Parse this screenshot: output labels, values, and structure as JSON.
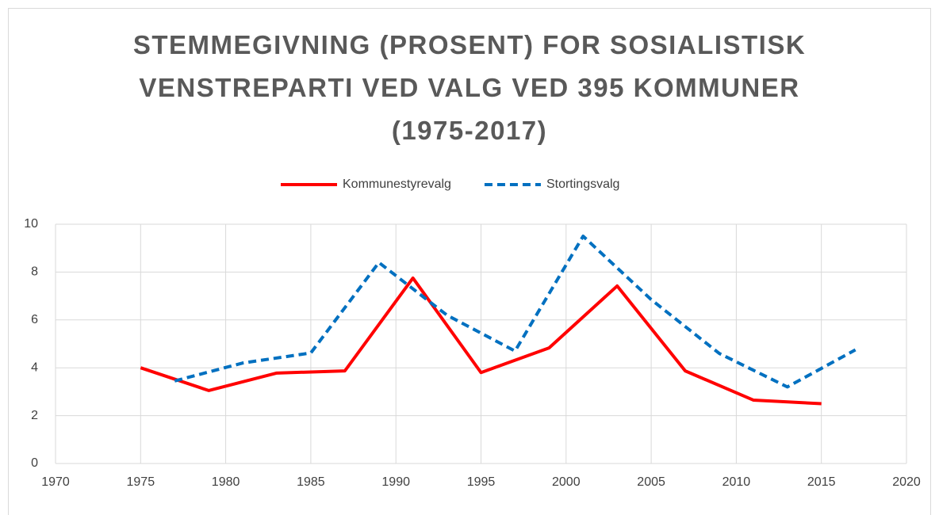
{
  "chart_data": {
    "type": "line",
    "title": "STEMMEGIVNING (PROSENT) FOR SOSIALISTISK VENSTREPARTI VED VALG VED 395 KOMMUNER (1975-2017)",
    "series": [
      {
        "name": "Kommunestyrevalg",
        "color": "#ff0000",
        "dash": false,
        "x": [
          1975,
          1979,
          1983,
          1987,
          1991,
          1995,
          1999,
          2003,
          2007,
          2011,
          2015
        ],
        "values": [
          4.0,
          3.05,
          3.78,
          3.87,
          7.75,
          3.8,
          4.83,
          7.42,
          3.87,
          2.65,
          2.5
        ]
      },
      {
        "name": "Stortingsvalg",
        "color": "#0070c0",
        "dash": true,
        "x": [
          1977,
          1981,
          1985,
          1989,
          1993,
          1997,
          2001,
          2005,
          2009,
          2013,
          2017
        ],
        "values": [
          3.45,
          4.2,
          4.62,
          8.4,
          6.2,
          4.7,
          9.5,
          6.85,
          4.6,
          3.2,
          4.75
        ]
      }
    ],
    "xlim": [
      1970,
      2020
    ],
    "xticks": [
      1970,
      1975,
      1980,
      1985,
      1990,
      1995,
      2000,
      2005,
      2010,
      2015,
      2020
    ],
    "ylim": [
      0,
      10
    ],
    "yticks": [
      0,
      2,
      4,
      6,
      8,
      10
    ],
    "grid": true,
    "legend": "top"
  }
}
